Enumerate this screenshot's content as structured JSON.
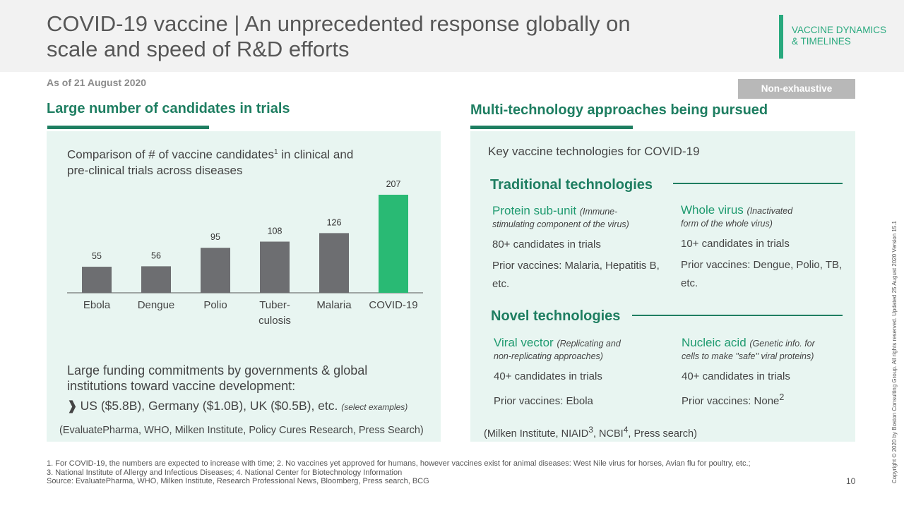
{
  "header": {
    "title_line1": "COVID-19 vaccine | An unprecedented response globally on",
    "title_line2": "scale and speed of R&D efforts",
    "section_tag_line1": "VACCINE DYNAMICS",
    "section_tag_line2": "& TIMELINES"
  },
  "as_of": "As of 21 August 2020",
  "badge": "Non-exhaustive",
  "left_panel": {
    "heading": "Large number of candidates in trials",
    "chart_title_a": "Comparison of # of vaccine candidates",
    "chart_title_sup": "1",
    "chart_title_b": " in clinical and",
    "chart_title_line2": "pre-clinical trials across diseases",
    "funding_line1": "Large funding commitments by governments & global",
    "funding_line2": "institutions toward vaccine development:",
    "funding_bullet_mark": "❱",
    "funding_bullet": "US ($5.8B), Germany ($1.0B), UK ($0.5B), etc.",
    "funding_note": "(select examples)",
    "source": "(EvaluatePharma, WHO, Milken Institute, Policy Cures Research, Press Search)"
  },
  "chart_data": {
    "type": "bar",
    "categories": [
      "Ebola",
      "Dengue",
      "Polio",
      "Tuber-culosis",
      "Malaria",
      "COVID-19"
    ],
    "category_lines": [
      [
        "Ebola"
      ],
      [
        "Dengue"
      ],
      [
        "Polio"
      ],
      [
        "Tuber-",
        "culosis"
      ],
      [
        "Malaria"
      ],
      [
        "COVID-19"
      ]
    ],
    "values": [
      55,
      56,
      95,
      108,
      126,
      207
    ],
    "colors": [
      "#6d6e71",
      "#6d6e71",
      "#6d6e71",
      "#6d6e71",
      "#6d6e71",
      "#29ba74"
    ],
    "title": "Comparison of # of vaccine candidates¹ in clinical and pre-clinical trials across diseases",
    "xlabel": "",
    "ylabel": "",
    "ylim": [
      0,
      207
    ],
    "grid": false,
    "data_labels": true
  },
  "right_panel": {
    "heading": "Multi-technology approaches being pursued",
    "key_tech": "Key vaccine technologies for COVID-19",
    "traditional_heading": "Traditional technologies",
    "novel_heading": "Novel technologies",
    "techs": [
      {
        "name": "Protein sub-unit",
        "desc_inline": "(Immune-",
        "desc_rest": "stimulating component of the virus)",
        "candidates": "80+ candidates in trials",
        "prior": "Prior vaccines: Malaria, Hepatitis B, etc.",
        "prior_sup": ""
      },
      {
        "name": "Whole virus",
        "desc_inline": "(Inactivated",
        "desc_rest": "form of the whole virus)",
        "candidates": "10+ candidates in trials",
        "prior": "Prior vaccines: Dengue, Polio, TB, etc.",
        "prior_sup": ""
      },
      {
        "name": "Viral vector",
        "desc_inline": "(Replicating and",
        "desc_rest": "non-replicating approaches)",
        "candidates": "40+ candidates in trials",
        "prior": "Prior vaccines: Ebola",
        "prior_sup": ""
      },
      {
        "name": "Nucleic acid",
        "desc_inline": "(Genetic info. for",
        "desc_rest": "cells to make \"safe\" viral proteins)",
        "candidates": "40+ candidates in trials",
        "prior": "Prior vaccines: None",
        "prior_sup": "2"
      }
    ],
    "source_a": "(Milken Institute, NIAID",
    "source_sup1": "3",
    "source_b": ", NCBI",
    "source_sup2": "4",
    "source_c": ", Press search)"
  },
  "footnotes": {
    "line1": "1. For COVID-19, the numbers are expected to increase with time;  2. No vaccines yet approved for humans, however vaccines exist for animal diseases: West Nile virus for horses, Avian flu for poultry, etc.;",
    "line2": "3. National Institute of Allergy and Infectious Diseases;  4. National Center for Biotechnology Information",
    "line3": "Source: EvaluatePharma, WHO, Milken Institute, Research Professional News, Bloomberg, Press search, BCG"
  },
  "page_number": "10",
  "copyright": "Copyright © 2020 by Boston Consulting Group. All rights reserved. Updated 25 August 2020 Version 15.1"
}
